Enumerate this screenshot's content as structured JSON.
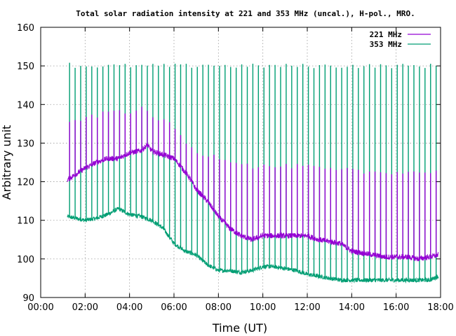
{
  "chart_data": {
    "type": "line",
    "title": "Total solar radiation intensity at 221 and 353 MHz (uncal.), H-pol., MRO.",
    "xlabel": "Time (UT)",
    "ylabel": "Arbitrary unit",
    "xlim": [
      0,
      18
    ],
    "ylim": [
      90,
      160
    ],
    "x_tick_labels": [
      "00:00",
      "02:00",
      "04:00",
      "06:00",
      "08:00",
      "10:00",
      "12:00",
      "14:00",
      "16:00",
      "18:00"
    ],
    "y_tick_labels": [
      "90",
      "100",
      "110",
      "120",
      "130",
      "140",
      "150",
      "160"
    ],
    "grid": true,
    "legend_position": "top-right",
    "spike_interval_hours": 0.25,
    "series": [
      {
        "name": "221 MHz",
        "color": "#9400d3",
        "x": [
          1.2,
          1.6,
          2.0,
          2.5,
          3.0,
          3.5,
          4.0,
          4.5,
          4.8,
          5.0,
          5.5,
          6.0,
          6.3,
          6.7,
          7.0,
          7.5,
          8.0,
          8.5,
          9.0,
          9.5,
          10.0,
          10.5,
          11.0,
          11.5,
          12.0,
          12.5,
          13.0,
          13.5,
          14.0,
          14.5,
          15.0,
          15.5,
          16.0,
          16.5,
          17.0,
          17.5,
          17.9
        ],
        "values": [
          120.5,
          122,
          123.5,
          125,
          126,
          126,
          127.5,
          128,
          129.5,
          128,
          127,
          126,
          124,
          121,
          118,
          115,
          111,
          108,
          106,
          105,
          106,
          106,
          106,
          106,
          106,
          105,
          104.5,
          104,
          102,
          101.5,
          101,
          100.5,
          100.5,
          100.5,
          100,
          100.5,
          101
        ],
        "spike_max": [
          135,
          136,
          136.5,
          137,
          138,
          138.5,
          138,
          139,
          138,
          137,
          136,
          134,
          132,
          129,
          127.5,
          127,
          126.5,
          125.5,
          125,
          124,
          124,
          124,
          124,
          124,
          124,
          123.5,
          123,
          123,
          123,
          122.5,
          122.5,
          122.5,
          122.5,
          122.5,
          122.5,
          122.5,
          122.5
        ]
      },
      {
        "name": "353 MHz",
        "color": "#009e73",
        "x": [
          1.2,
          1.6,
          2.0,
          2.5,
          3.0,
          3.5,
          4.0,
          4.5,
          5.0,
          5.5,
          6.0,
          6.5,
          7.0,
          7.5,
          8.0,
          8.5,
          9.0,
          9.5,
          10.0,
          10.5,
          11.0,
          11.5,
          12.0,
          12.5,
          13.0,
          13.5,
          14.0,
          14.5,
          15.0,
          15.5,
          16.0,
          16.5,
          17.0,
          17.5,
          17.9
        ],
        "values": [
          111,
          110.5,
          110,
          110.5,
          111.5,
          113,
          111.5,
          111,
          110,
          108,
          104,
          102,
          101,
          98.5,
          97,
          97,
          96.5,
          97,
          98,
          98,
          97.5,
          97,
          96,
          95.5,
          95,
          94.5,
          94.5,
          94.5,
          94.5,
          94.5,
          94.5,
          94.5,
          94.5,
          94.5,
          95.5
        ],
        "spike_max": [
          150.5,
          150,
          150,
          150,
          150,
          150,
          150,
          150,
          150,
          150,
          150,
          150,
          150,
          150.5,
          150,
          150,
          150,
          150,
          150,
          150,
          150,
          150,
          150,
          150,
          150,
          150,
          150,
          150,
          150,
          150,
          150,
          150,
          150,
          150,
          150
        ]
      }
    ]
  }
}
